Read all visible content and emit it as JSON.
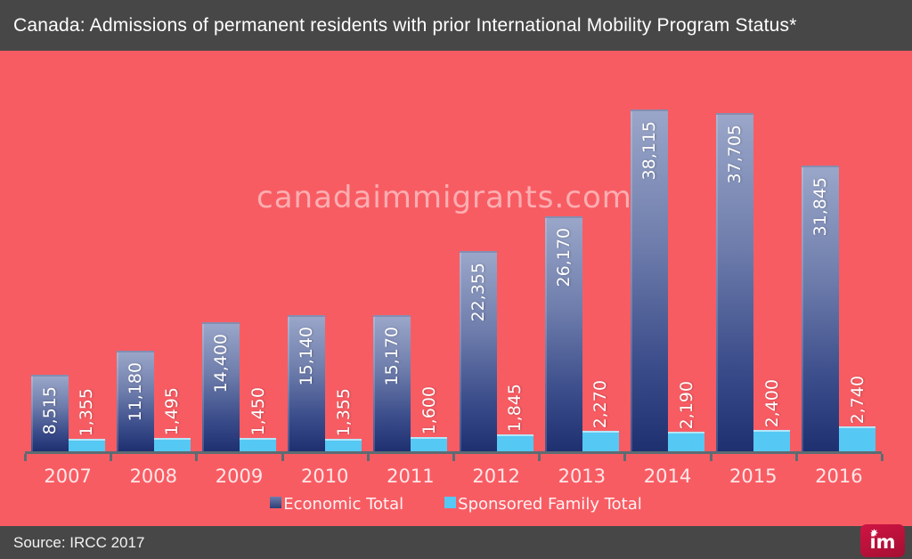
{
  "header": {
    "title": "Canada: Admissions of permanent residents with prior International Mobility Program Status*"
  },
  "watermark": "canadaimmigrants.com",
  "legend": {
    "items": [
      {
        "label": "Economic Total",
        "color": "#2e3f79"
      },
      {
        "label": "Sponsored Family Total",
        "color": "#55c8f3"
      }
    ]
  },
  "footer": {
    "source": "Source: IRCC 2017",
    "logo_text": "im"
  },
  "colors": {
    "background": "#f85c63",
    "header_bg": "#474747",
    "bar_economic_top": "#9aa6c9",
    "bar_economic_bottom": "#1e3070",
    "bar_family": "#55c8f3",
    "axis": "#5c6c73",
    "logo_bg": "#b01238"
  },
  "chart_data": {
    "type": "bar",
    "title": "Canada: Admissions of permanent residents with prior International Mobility Program Status*",
    "xlabel": "",
    "ylabel": "",
    "ylim": [
      0,
      38115
    ],
    "grid": false,
    "legend_position": "bottom",
    "categories": [
      "2007",
      "2008",
      "2009",
      "2010",
      "2011",
      "2012",
      "2013",
      "2014",
      "2015",
      "2016"
    ],
    "series": [
      {
        "name": "Economic Total",
        "values": [
          8515,
          11180,
          14400,
          15140,
          15170,
          22355,
          26170,
          38115,
          37705,
          31845
        ]
      },
      {
        "name": "Sponsored Family Total",
        "values": [
          1355,
          1495,
          1450,
          1355,
          1600,
          1845,
          2270,
          2190,
          2400,
          2740
        ]
      }
    ]
  }
}
